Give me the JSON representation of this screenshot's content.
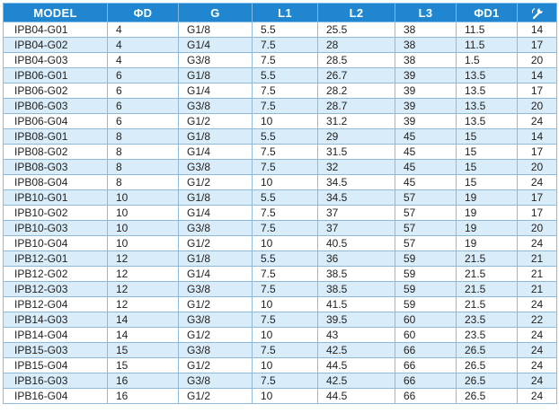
{
  "headers": {
    "model": "MODEL",
    "d": "ΦD",
    "g": "G",
    "l1": "L1",
    "l2": "L2",
    "l3": "L3",
    "d1": "ΦD1",
    "last_icon": "torque-wrench-icon"
  },
  "rows": [
    [
      "IPB04-G01",
      "4",
      "G1/8",
      "5.5",
      "25.5",
      "38",
      "11.5",
      "14"
    ],
    [
      "IPB04-G02",
      "4",
      "G1/4",
      "7.5",
      "28",
      "38",
      "11.5",
      "17"
    ],
    [
      "IPB04-G03",
      "4",
      "G3/8",
      "7.5",
      "28.5",
      "38",
      "1.5",
      "20"
    ],
    [
      "IPB06-G01",
      "6",
      "G1/8",
      "5.5",
      "26.7",
      "39",
      "13.5",
      "14"
    ],
    [
      "IPB06-G02",
      "6",
      "G1/4",
      "7.5",
      "28.2",
      "39",
      "13.5",
      "17"
    ],
    [
      "IPB06-G03",
      "6",
      "G3/8",
      "7.5",
      "28.7",
      "39",
      "13.5",
      "20"
    ],
    [
      "IPB06-G04",
      "6",
      "G1/2",
      "10",
      "31.2",
      "39",
      "13.5",
      "24"
    ],
    [
      "IPB08-G01",
      "8",
      "G1/8",
      "5.5",
      "29",
      "45",
      "15",
      "14"
    ],
    [
      "IPB08-G02",
      "8",
      "G1/4",
      "7.5",
      "31.5",
      "45",
      "15",
      "17"
    ],
    [
      "IPB08-G03",
      "8",
      "G3/8",
      "7.5",
      "32",
      "45",
      "15",
      "20"
    ],
    [
      "IPB08-G04",
      "8",
      "G1/2",
      "10",
      "34.5",
      "45",
      "15",
      "24"
    ],
    [
      "IPB10-G01",
      "10",
      "G1/8",
      "5.5",
      "34.5",
      "57",
      "19",
      "17"
    ],
    [
      "IPB10-G02",
      "10",
      "G1/4",
      "7.5",
      "37",
      "57",
      "19",
      "17"
    ],
    [
      "IPB10-G03",
      "10",
      "G3/8",
      "7.5",
      "37",
      "57",
      "19",
      "20"
    ],
    [
      "IPB10-G04",
      "10",
      "G1/2",
      "10",
      "40.5",
      "57",
      "19",
      "24"
    ],
    [
      "IPB12-G01",
      "12",
      "G1/8",
      "5.5",
      "36",
      "59",
      "21.5",
      "21"
    ],
    [
      "IPB12-G02",
      "12",
      "G1/4",
      "7.5",
      "38.5",
      "59",
      "21.5",
      "21"
    ],
    [
      "IPB12-G03",
      "12",
      "G3/8",
      "7.5",
      "38.5",
      "59",
      "21.5",
      "21"
    ],
    [
      "IPB12-G04",
      "12",
      "G1/2",
      "10",
      "41.5",
      "59",
      "21.5",
      "24"
    ],
    [
      "IPB14-G03",
      "14",
      "G3/8",
      "7.5",
      "39.5",
      "60",
      "23.5",
      "22"
    ],
    [
      "IPB14-G04",
      "14",
      "G1/2",
      "10",
      "43",
      "60",
      "23.5",
      "24"
    ],
    [
      "IPB15-G03",
      "15",
      "G3/8",
      "7.5",
      "42.5",
      "66",
      "26.5",
      "24"
    ],
    [
      "IPB15-G04",
      "15",
      "G1/2",
      "10",
      "44.5",
      "66",
      "26.5",
      "24"
    ],
    [
      "IPB16-G03",
      "16",
      "G3/8",
      "7.5",
      "42.5",
      "66",
      "26.5",
      "24"
    ],
    [
      "IPB16-G04",
      "16",
      "G1/2",
      "10",
      "44.5",
      "66",
      "26.5",
      "24"
    ]
  ]
}
